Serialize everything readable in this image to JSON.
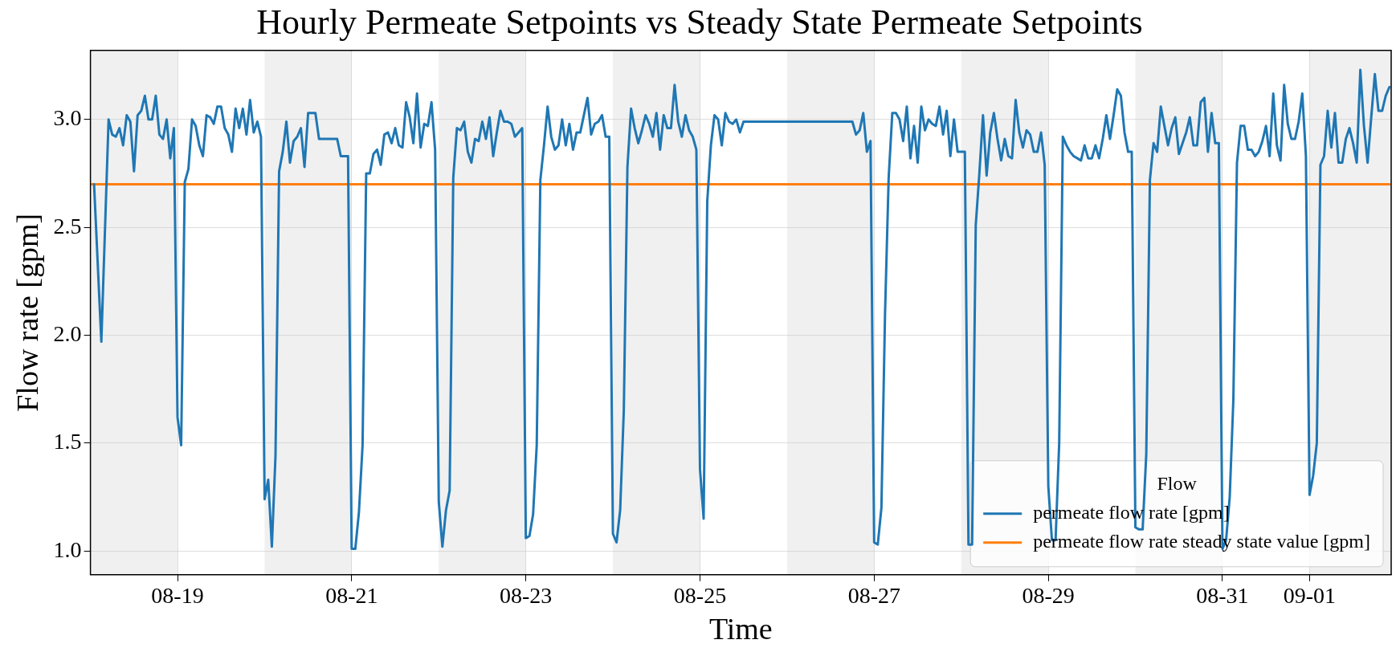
{
  "chart_data": {
    "type": "line",
    "title": "Hourly Permeate Setpoints vs Steady State Permeate Setpoints",
    "xlabel": "Time",
    "ylabel": "Flow rate [gpm]",
    "legend_title": "Flow",
    "legend": "bottom right",
    "grid": true,
    "marker": "none",
    "xlim": [
      "--08-18T00:00",
      "--09-01T22:30"
    ],
    "xticks": [
      {
        "value": "--08-19",
        "label": "08-19"
      },
      {
        "value": "--08-21",
        "label": "08-21"
      },
      {
        "value": "--08-23",
        "label": "08-23"
      },
      {
        "value": "--08-25",
        "label": "08-25"
      },
      {
        "value": "--08-27",
        "label": "08-27"
      },
      {
        "value": "--08-29",
        "label": "08-29"
      },
      {
        "value": "--08-31",
        "label": "08-31"
      },
      {
        "value": "--09-01",
        "label": "09-01"
      }
    ],
    "ylim": [
      0.89,
      3.32
    ],
    "yticks": [
      {
        "value": 1,
        "label": "1.0"
      },
      {
        "value": 1.5,
        "label": "1.5"
      },
      {
        "value": 2,
        "label": "2.0"
      },
      {
        "value": 2.5,
        "label": "2.5"
      },
      {
        "value": 3,
        "label": "3.0"
      }
    ],
    "bands": [
      {
        "axis": "x",
        "from": "--08-18T00:00",
        "to": "--08-19",
        "color": "#f0f0f0"
      },
      {
        "axis": "x",
        "from": "--08-20",
        "to": "--08-21",
        "color": "#f0f0f0"
      },
      {
        "axis": "x",
        "from": "--08-22",
        "to": "--08-23",
        "color": "#f0f0f0"
      },
      {
        "axis": "x",
        "from": "--08-24",
        "to": "--08-25",
        "color": "#f0f0f0"
      },
      {
        "axis": "x",
        "from": "--08-26",
        "to": "--08-27",
        "color": "#f0f0f0"
      },
      {
        "axis": "x",
        "from": "--08-28",
        "to": "--08-29",
        "color": "#f0f0f0"
      },
      {
        "axis": "x",
        "from": "--08-30",
        "to": "--08-31",
        "color": "#f0f0f0"
      },
      {
        "axis": "x",
        "from": "--09-01",
        "to": "--09-01T22:30",
        "color": "#f0f0f0"
      }
    ],
    "series": [
      {
        "name": "permeate flow rate [gpm]",
        "color": "#1f77b4",
        "x": [
          "--08-18T01:00",
          "--08-18T03:00",
          "--08-18T05:00",
          "--08-18T06:00",
          "--08-18T07:00",
          "--08-18T08:00",
          "--08-18T09:00",
          "--08-18T10:00",
          "--08-18T11:00",
          "--08-18T12:00",
          "--08-18T13:00",
          "--08-18T14:00",
          "--08-18T15:00",
          "--08-18T16:00",
          "--08-18T17:00",
          "--08-18T18:00",
          "--08-18T19:00",
          "--08-18T20:00",
          "--08-18T21:00",
          "--08-18T22:00",
          "--08-18T23:00",
          "--08-19T00:00",
          "--08-19T01:00",
          "--08-19T02:00",
          "--08-19T03:00",
          "--08-19T04:00",
          "--08-19T05:00",
          "--08-19T06:00",
          "--08-19T07:00",
          "--08-19T08:00",
          "--08-19T09:00",
          "--08-19T10:00",
          "--08-19T11:00",
          "--08-19T12:00",
          "--08-19T13:00",
          "--08-19T14:00",
          "--08-19T15:00",
          "--08-19T16:00",
          "--08-19T17:00",
          "--08-19T18:00",
          "--08-19T19:00",
          "--08-19T20:00",
          "--08-19T21:00",
          "--08-19T22:00",
          "--08-19T23:00",
          "--08-20T00:00",
          "--08-20T01:00",
          "--08-20T02:00",
          "--08-20T03:00",
          "--08-20T04:00",
          "--08-20T05:00",
          "--08-20T06:00",
          "--08-20T07:00",
          "--08-20T08:00",
          "--08-20T09:00",
          "--08-20T10:00",
          "--08-20T11:00",
          "--08-20T12:00",
          "--08-20T14:00",
          "--08-20T15:00",
          "--08-20T20:00",
          "--08-20T21:00",
          "--08-20T23:00",
          "--08-21T00:00",
          "--08-21T01:00",
          "--08-21T02:00",
          "--08-21T03:00",
          "--08-21T04:00",
          "--08-21T05:00",
          "--08-21T06:00",
          "--08-21T07:00",
          "--08-21T08:00",
          "--08-21T09:00",
          "--08-21T10:00",
          "--08-21T11:00",
          "--08-21T12:00",
          "--08-21T13:00",
          "--08-21T14:00",
          "--08-21T15:00",
          "--08-21T16:00",
          "--08-21T17:00",
          "--08-21T18:00",
          "--08-21T19:00",
          "--08-21T20:00",
          "--08-21T21:00",
          "--08-21T22:00",
          "--08-21T23:00",
          "--08-22T00:00",
          "--08-22T01:00",
          "--08-22T02:00",
          "--08-22T03:00",
          "--08-22T04:00",
          "--08-22T05:00",
          "--08-22T06:00",
          "--08-22T07:00",
          "--08-22T08:00",
          "--08-22T09:00",
          "--08-22T10:00",
          "--08-22T11:00",
          "--08-22T12:00",
          "--08-22T13:00",
          "--08-22T14:00",
          "--08-22T15:00",
          "--08-22T16:00",
          "--08-22T17:00",
          "--08-22T18:00",
          "--08-22T19:00",
          "--08-22T20:00",
          "--08-22T21:00",
          "--08-22T22:00",
          "--08-22T23:00",
          "--08-23T00:00",
          "--08-23T01:00",
          "--08-23T02:00",
          "--08-23T03:00",
          "--08-23T04:00",
          "--08-23T05:00",
          "--08-23T06:00",
          "--08-23T07:00",
          "--08-23T08:00",
          "--08-23T09:00",
          "--08-23T10:00",
          "--08-23T11:00",
          "--08-23T12:00",
          "--08-23T13:00",
          "--08-23T14:00",
          "--08-23T15:00",
          "--08-23T16:00",
          "--08-23T17:00",
          "--08-23T18:00",
          "--08-23T19:00",
          "--08-23T20:00",
          "--08-23T21:00",
          "--08-23T22:00",
          "--08-23T23:00",
          "--08-24T00:00",
          "--08-24T01:00",
          "--08-24T02:00",
          "--08-24T03:00",
          "--08-24T04:00",
          "--08-24T05:00",
          "--08-24T06:00",
          "--08-24T07:00",
          "--08-24T08:00",
          "--08-24T09:00",
          "--08-24T10:00",
          "--08-24T11:00",
          "--08-24T12:00",
          "--08-24T13:00",
          "--08-24T14:00",
          "--08-24T15:00",
          "--08-24T16:00",
          "--08-24T17:00",
          "--08-24T18:00",
          "--08-24T19:00",
          "--08-24T20:00",
          "--08-24T21:00",
          "--08-24T22:00",
          "--08-24T23:00",
          "--08-25T00:00",
          "--08-25T01:00",
          "--08-25T02:00",
          "--08-25T03:00",
          "--08-25T04:00",
          "--08-25T05:00",
          "--08-25T06:00",
          "--08-25T07:00",
          "--08-25T08:00",
          "--08-25T09:00",
          "--08-25T10:00",
          "--08-25T11:00",
          "--08-25T12:00",
          "--08-25T13:00",
          "--08-26T18:00",
          "--08-26T19:00",
          "--08-26T20:00",
          "--08-26T21:00",
          "--08-26T22:00",
          "--08-26T23:00",
          "--08-27T00:00",
          "--08-27T01:00",
          "--08-27T02:00",
          "--08-27T03:00",
          "--08-27T04:00",
          "--08-27T05:00",
          "--08-27T06:00",
          "--08-27T07:00",
          "--08-27T08:00",
          "--08-27T09:00",
          "--08-27T10:00",
          "--08-27T11:00",
          "--08-27T12:00",
          "--08-27T13:00",
          "--08-27T14:00",
          "--08-27T15:00",
          "--08-27T16:00",
          "--08-27T17:00",
          "--08-27T18:00",
          "--08-27T19:00",
          "--08-27T20:00",
          "--08-27T21:00",
          "--08-27T22:00",
          "--08-27T23:00",
          "--08-28T00:00",
          "--08-28T01:00",
          "--08-28T02:00",
          "--08-28T03:00",
          "--08-28T04:00",
          "--08-28T05:00",
          "--08-28T06:00",
          "--08-28T07:00",
          "--08-28T08:00",
          "--08-28T09:00",
          "--08-28T10:00",
          "--08-28T11:00",
          "--08-28T12:00",
          "--08-28T13:00",
          "--08-28T14:00",
          "--08-28T15:00",
          "--08-28T16:00",
          "--08-28T17:00",
          "--08-28T18:00",
          "--08-28T19:00",
          "--08-28T20:00",
          "--08-28T21:00",
          "--08-28T22:00",
          "--08-28T23:00",
          "--08-29T00:00",
          "--08-29T01:00",
          "--08-29T02:00",
          "--08-29T03:00",
          "--08-29T04:00",
          "--08-29T05:00",
          "--08-29T06:00",
          "--08-29T07:00",
          "--08-29T08:00",
          "--08-29T09:00",
          "--08-29T10:00",
          "--08-29T11:00",
          "--08-29T12:00",
          "--08-29T13:00",
          "--08-29T14:00",
          "--08-29T15:00",
          "--08-29T16:00",
          "--08-29T17:00",
          "--08-29T18:00",
          "--08-29T19:00",
          "--08-29T20:00",
          "--08-29T21:00",
          "--08-29T22:00",
          "--08-29T23:00",
          "--08-30T00:00",
          "--08-30T01:00",
          "--08-30T02:00",
          "--08-30T03:00",
          "--08-30T04:00",
          "--08-30T05:00",
          "--08-30T06:00",
          "--08-30T07:00",
          "--08-30T08:00",
          "--08-30T09:00",
          "--08-30T10:00",
          "--08-30T11:00",
          "--08-30T12:00",
          "--08-30T13:00",
          "--08-30T14:00",
          "--08-30T15:00",
          "--08-30T16:00",
          "--08-30T17:00",
          "--08-30T18:00",
          "--08-30T19:00",
          "--08-30T20:00",
          "--08-30T21:00",
          "--08-30T22:00",
          "--08-30T23:00",
          "--08-31T00:00",
          "--08-31T01:00",
          "--08-31T02:00",
          "--08-31T03:00",
          "--08-31T04:00",
          "--08-31T05:00",
          "--08-31T06:00",
          "--08-31T07:00",
          "--08-31T08:00",
          "--08-31T09:00",
          "--08-31T10:00",
          "--08-31T11:00",
          "--08-31T12:00",
          "--08-31T13:00",
          "--08-31T14:00",
          "--08-31T15:00",
          "--08-31T16:00",
          "--08-31T17:00",
          "--08-31T18:00",
          "--08-31T19:00",
          "--08-31T20:00",
          "--08-31T21:00",
          "--08-31T22:00",
          "--08-31T23:00",
          "--09-01T00:00",
          "--09-01T01:00",
          "--09-01T02:00",
          "--09-01T03:00",
          "--09-01T04:00",
          "--09-01T05:00",
          "--09-01T06:00",
          "--09-01T07:00",
          "--09-01T08:00",
          "--09-01T09:00",
          "--09-01T10:00",
          "--09-01T11:00",
          "--09-01T12:00",
          "--09-01T13:00",
          "--09-01T14:00",
          "--09-01T15:00",
          "--09-01T16:00",
          "--09-01T17:00",
          "--09-01T18:00",
          "--09-01T19:00",
          "--09-01T20:00",
          "--09-01T21:00",
          "--09-01T22:00"
        ],
        "values": [
          2.7,
          1.97,
          3.0,
          2.93,
          2.92,
          2.96,
          2.88,
          3.02,
          2.99,
          2.76,
          3.02,
          3.04,
          3.11,
          3.0,
          3.0,
          3.11,
          2.93,
          2.91,
          3.0,
          2.82,
          2.96,
          1.62,
          1.49,
          2.71,
          2.77,
          3.0,
          2.97,
          2.88,
          2.83,
          3.02,
          3.01,
          2.98,
          3.06,
          3.06,
          2.96,
          2.93,
          2.85,
          3.05,
          2.96,
          3.05,
          2.93,
          3.09,
          2.94,
          2.99,
          2.92,
          1.24,
          1.33,
          1.02,
          1.44,
          2.76,
          2.85,
          2.99,
          2.8,
          2.9,
          2.92,
          2.96,
          2.78,
          3.03,
          3.03,
          2.91,
          2.91,
          2.83,
          2.83,
          1.01,
          1.01,
          1.18,
          1.49,
          2.75,
          2.75,
          2.84,
          2.86,
          2.79,
          2.93,
          2.94,
          2.89,
          2.96,
          2.88,
          2.87,
          3.08,
          3.01,
          2.89,
          3.12,
          2.87,
          2.98,
          2.97,
          3.08,
          2.86,
          1.23,
          1.02,
          1.19,
          1.28,
          2.73,
          2.96,
          2.95,
          2.99,
          2.85,
          2.8,
          2.91,
          2.9,
          2.99,
          2.91,
          3.01,
          2.83,
          2.94,
          3.04,
          2.99,
          2.99,
          2.98,
          2.92,
          2.94,
          2.96,
          1.06,
          1.07,
          1.17,
          1.49,
          2.72,
          2.88,
          3.06,
          2.92,
          2.86,
          2.88,
          3.0,
          2.88,
          2.98,
          2.86,
          2.94,
          2.94,
          3.02,
          3.1,
          2.93,
          2.98,
          2.99,
          3.02,
          2.92,
          2.92,
          1.08,
          1.04,
          1.19,
          1.65,
          2.78,
          3.05,
          2.96,
          2.89,
          2.95,
          3.02,
          2.98,
          2.92,
          3.03,
          2.86,
          3.02,
          2.96,
          2.96,
          3.16,
          2.99,
          2.92,
          3.02,
          2.95,
          2.92,
          2.86,
          1.38,
          1.15,
          2.62,
          2.88,
          3.02,
          3.0,
          2.88,
          3.03,
          2.99,
          2.98,
          3.0,
          2.94,
          2.99,
          2.99,
          2.99,
          2.93,
          2.95,
          3.03,
          2.85,
          2.9,
          1.04,
          1.03,
          1.2,
          2.1,
          2.73,
          3.03,
          3.03,
          3.0,
          2.9,
          3.06,
          2.82,
          2.97,
          2.8,
          3.06,
          2.95,
          3.0,
          2.98,
          2.97,
          3.06,
          2.93,
          3.04,
          2.83,
          3.0,
          2.85,
          2.85,
          2.85,
          1.03,
          1.03,
          2.51,
          2.75,
          3.02,
          2.74,
          2.94,
          3.03,
          2.91,
          2.81,
          2.91,
          2.83,
          2.82,
          3.09,
          2.94,
          2.87,
          2.95,
          2.93,
          2.85,
          2.85,
          2.94,
          2.79,
          1.3,
          1.05,
          1.05,
          1.5,
          2.92,
          2.88,
          2.85,
          2.83,
          2.82,
          2.81,
          2.88,
          2.82,
          2.82,
          2.88,
          2.82,
          2.91,
          3.02,
          2.91,
          3.02,
          3.14,
          3.11,
          2.94,
          2.85,
          2.85,
          1.11,
          1.1,
          1.1,
          1.45,
          2.72,
          2.89,
          2.85,
          3.06,
          2.97,
          2.88,
          2.96,
          3.01,
          2.84,
          2.89,
          2.94,
          3.01,
          2.88,
          2.88,
          3.08,
          3.1,
          2.85,
          3.03,
          2.89,
          2.89,
          1.01,
          1.05,
          1.25,
          1.7,
          2.8,
          2.97,
          2.97,
          2.86,
          2.86,
          2.83,
          2.85,
          2.9,
          2.97,
          2.83,
          3.12,
          2.88,
          2.81,
          3.16,
          2.98,
          2.91,
          2.91,
          2.99,
          3.12,
          2.83,
          1.26,
          1.35,
          1.5,
          2.79,
          2.83,
          3.04,
          2.87,
          3.03,
          2.8,
          2.8,
          2.91,
          2.96,
          2.89,
          2.8,
          3.23,
          2.97,
          2.8,
          3.01,
          3.21,
          3.04,
          3.04,
          3.11,
          3.15
        ]
      },
      {
        "name": "permeate flow rate steady state value [gpm]",
        "color": "#ff7f0e",
        "x": [
          "--08-18T00:00",
          "--09-01T22:00"
        ],
        "values": [
          2.7,
          2.7
        ]
      }
    ]
  }
}
